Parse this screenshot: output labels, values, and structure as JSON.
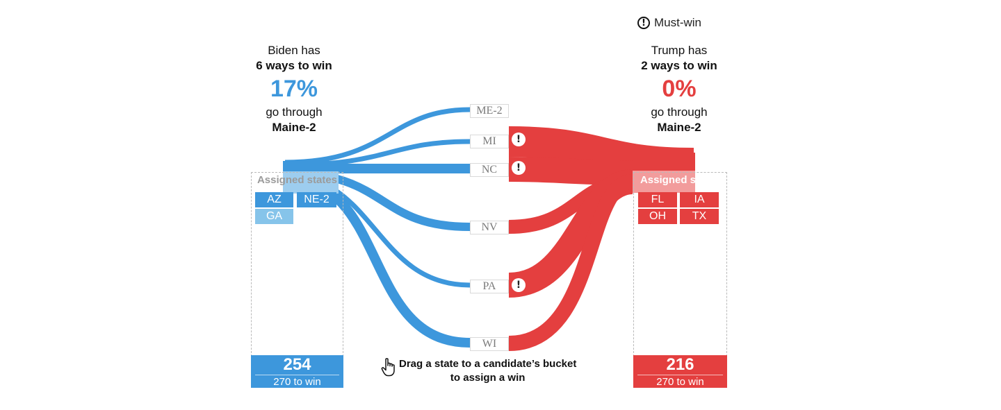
{
  "legend": {
    "icon": "exclamation-circle-icon",
    "label": "Must-win"
  },
  "biden": {
    "line1": "Biden has",
    "line2": "6 ways to win",
    "percent": "17%",
    "line4": "go through",
    "line5": "Maine-2",
    "color": "#3d97dc",
    "bucket_title": "Assigned states",
    "assigned": [
      {
        "label": "AZ",
        "shade": "dark"
      },
      {
        "label": "NE-2",
        "shade": "dark"
      },
      {
        "label": "GA",
        "shade": "light"
      }
    ],
    "votes": "254",
    "votes_sub": "270 to win"
  },
  "trump": {
    "line1": "Trump has",
    "line2": "2 ways to win",
    "percent": "0%",
    "line4": "go through",
    "line5": "Maine-2",
    "color": "#e43f3f",
    "bucket_title": "Assigned states",
    "assigned": [
      {
        "label": "FL"
      },
      {
        "label": "IA"
      },
      {
        "label": "OH"
      },
      {
        "label": "TX"
      }
    ],
    "votes": "216",
    "votes_sub": "270 to win"
  },
  "states": [
    {
      "label": "ME-2",
      "must_win": false
    },
    {
      "label": "MI",
      "must_win": true
    },
    {
      "label": "NC",
      "must_win": true
    },
    {
      "label": "NV",
      "must_win": false
    },
    {
      "label": "PA",
      "must_win": true
    },
    {
      "label": "WI",
      "must_win": false
    }
  ],
  "hint": {
    "icon": "pointer-hand-icon",
    "line1": "Drag a state to a candidate’s bucket",
    "line2": "to assign a win"
  }
}
